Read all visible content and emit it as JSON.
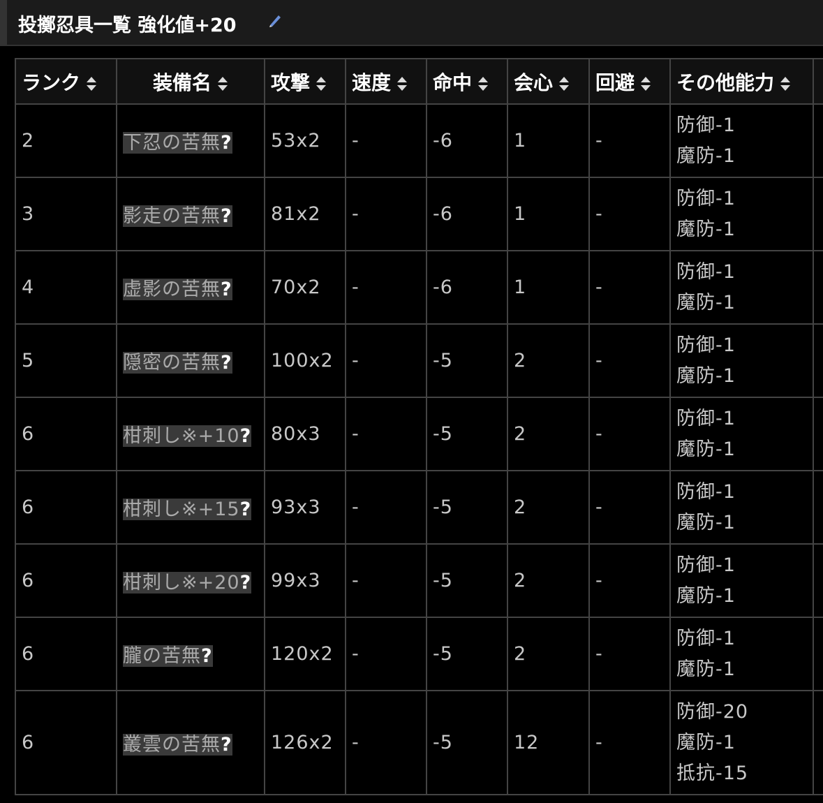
{
  "header": {
    "title": "投擲忍具一覧 強化値+20"
  },
  "table": {
    "columns": [
      "ランク",
      "装備名",
      "攻撃",
      "速度",
      "命中",
      "会心",
      "回避",
      "その他能力"
    ],
    "rows": [
      [
        "2",
        {
          "label": "下忍の苦無",
          "marker": "?"
        },
        "53x2",
        "-",
        "-6",
        "1",
        "-",
        [
          "防御-1",
          "魔防-1"
        ]
      ],
      [
        "3",
        {
          "label": "影走の苦無",
          "marker": "?"
        },
        "81x2",
        "-",
        "-6",
        "1",
        "-",
        [
          "防御-1",
          "魔防-1"
        ]
      ],
      [
        "4",
        {
          "label": "虚影の苦無",
          "marker": "?"
        },
        "70x2",
        "-",
        "-6",
        "1",
        "-",
        [
          "防御-1",
          "魔防-1"
        ]
      ],
      [
        "5",
        {
          "label": "隠密の苦無",
          "marker": "?"
        },
        "100x2",
        "-",
        "-5",
        "2",
        "-",
        [
          "防御-1",
          "魔防-1"
        ]
      ],
      [
        "6",
        {
          "label": "柑刺し※+10",
          "marker": "?"
        },
        "80x3",
        "-",
        "-5",
        "2",
        "-",
        [
          "防御-1",
          "魔防-1"
        ]
      ],
      [
        "6",
        {
          "label": "柑刺し※+15",
          "marker": "?"
        },
        "93x3",
        "-",
        "-5",
        "2",
        "-",
        [
          "防御-1",
          "魔防-1"
        ]
      ],
      [
        "6",
        {
          "label": "柑刺し※+20",
          "marker": "?"
        },
        "99x3",
        "-",
        "-5",
        "2",
        "-",
        [
          "防御-1",
          "魔防-1"
        ]
      ],
      [
        "6",
        {
          "label": "朧の苦無",
          "marker": "?"
        },
        "120x2",
        "-",
        "-5",
        "2",
        "-",
        [
          "防御-1",
          "魔防-1"
        ]
      ],
      [
        "6",
        {
          "label": "叢雲の苦無",
          "marker": "?"
        },
        "126x2",
        "-",
        "-5",
        "12",
        "-",
        [
          "防御-20",
          "魔防-1",
          "抵抗-15"
        ]
      ]
    ]
  }
}
